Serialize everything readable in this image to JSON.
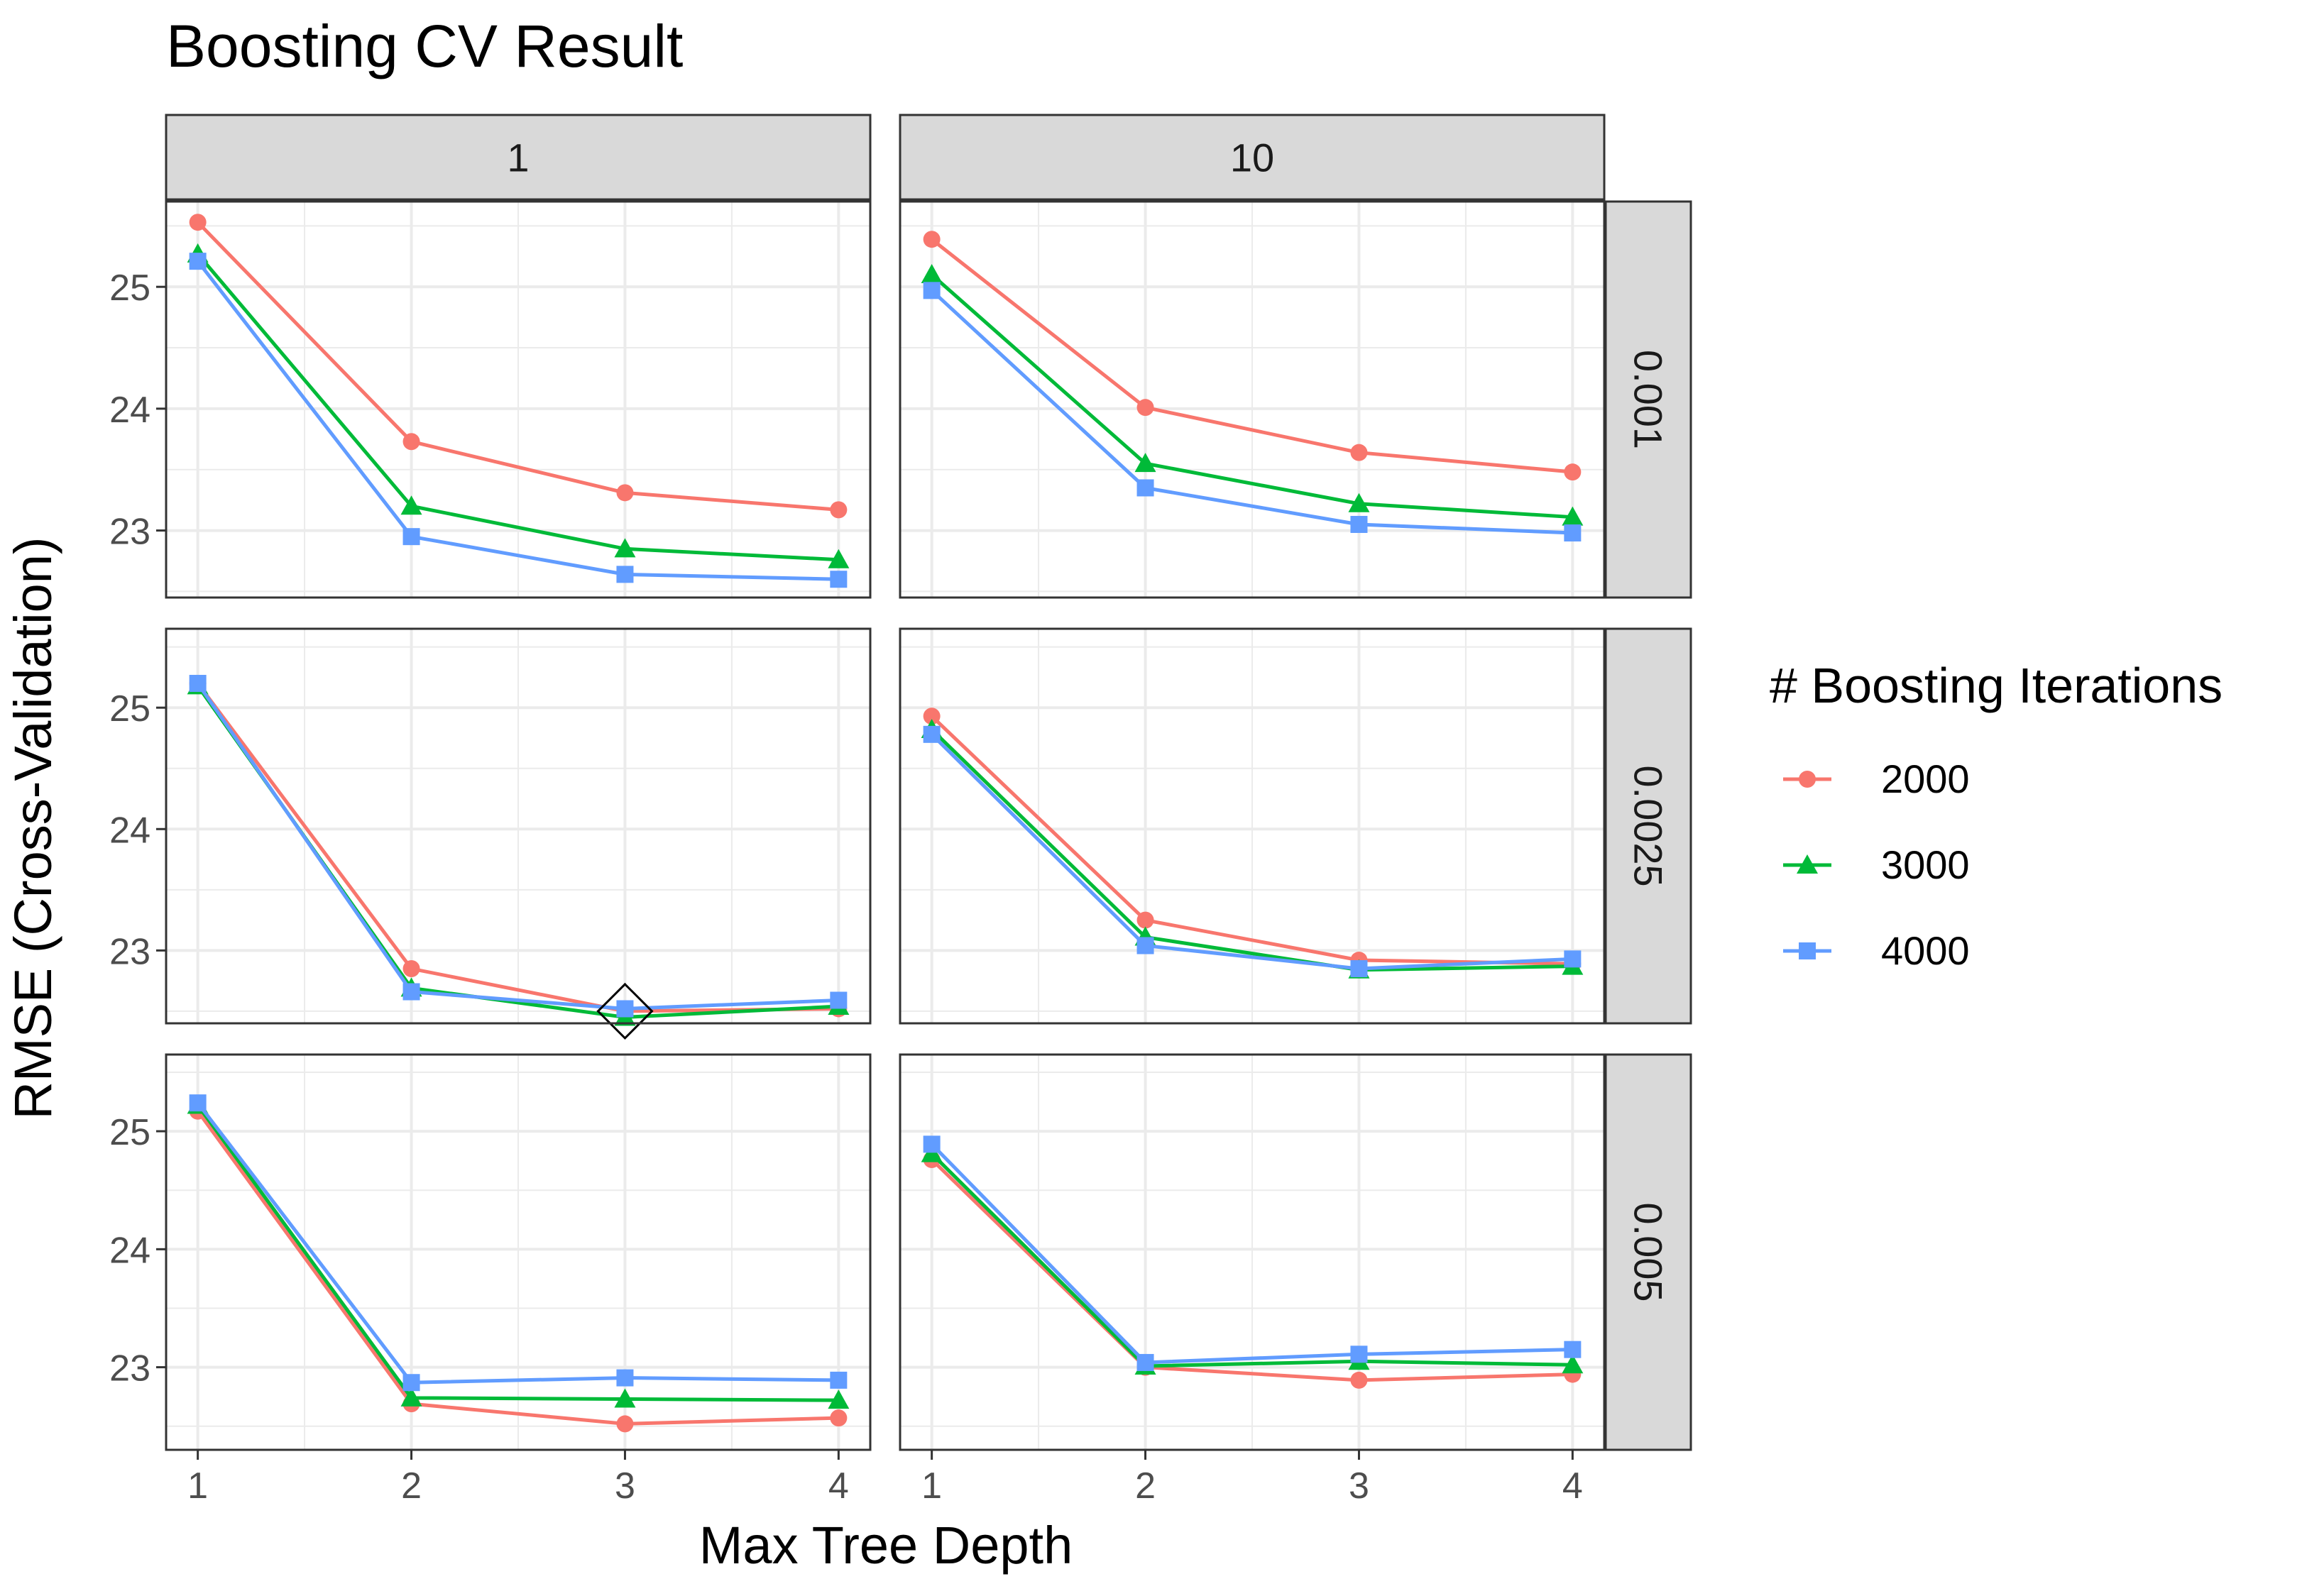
{
  "chart_data": {
    "type": "line",
    "title": "Boosting CV Result",
    "xlabel": "Max Tree Depth",
    "ylabel": "RMSE (Cross-Validation)",
    "x": [
      1,
      2,
      3,
      4
    ],
    "x_ticks": [
      "1",
      "2",
      "3",
      "4"
    ],
    "y_ticks": [
      "23",
      "24",
      "25"
    ],
    "legend_title": "# Boosting Iterations",
    "legend_position": "right",
    "grid": true,
    "facet_columns": [
      "1",
      "10"
    ],
    "facet_rows": [
      "0.001",
      "0.0025",
      "0.005"
    ],
    "series_meta": [
      {
        "name": "2000",
        "color": "#F8766D",
        "shape": "circle"
      },
      {
        "name": "3000",
        "color": "#00BA38",
        "shape": "triangle"
      },
      {
        "name": "4000",
        "color": "#619CFF",
        "shape": "square"
      }
    ],
    "row_ylims": [
      [
        22.45,
        25.7
      ],
      [
        22.4,
        25.65
      ],
      [
        22.3,
        25.65
      ]
    ],
    "panels": [
      {
        "row": "0.001",
        "col": "1",
        "series": [
          {
            "name": "2000",
            "values": [
              25.53,
              23.73,
              23.31,
              23.17
            ]
          },
          {
            "name": "3000",
            "values": [
              25.27,
              23.2,
              22.85,
              22.76
            ]
          },
          {
            "name": "4000",
            "values": [
              25.21,
              22.95,
              22.64,
              22.6
            ]
          }
        ]
      },
      {
        "row": "0.001",
        "col": "10",
        "series": [
          {
            "name": "2000",
            "values": [
              25.39,
              24.01,
              23.64,
              23.48
            ]
          },
          {
            "name": "3000",
            "values": [
              25.1,
              23.55,
              23.22,
              23.11
            ]
          },
          {
            "name": "4000",
            "values": [
              24.97,
              23.35,
              23.05,
              22.98
            ]
          }
        ]
      },
      {
        "row": "0.0025",
        "col": "1",
        "series": [
          {
            "name": "2000",
            "values": [
              25.2,
              22.85,
              22.5,
              22.52
            ]
          },
          {
            "name": "3000",
            "values": [
              25.18,
              22.69,
              22.45,
              22.54
            ]
          },
          {
            "name": "4000",
            "values": [
              25.2,
              22.66,
              22.52,
              22.59
            ]
          }
        ]
      },
      {
        "row": "0.0025",
        "col": "10",
        "series": [
          {
            "name": "2000",
            "values": [
              24.93,
              23.25,
              22.92,
              22.89
            ]
          },
          {
            "name": "3000",
            "values": [
              24.82,
              23.11,
              22.84,
              22.87
            ]
          },
          {
            "name": "4000",
            "values": [
              24.78,
              23.04,
              22.85,
              22.93
            ]
          }
        ]
      },
      {
        "row": "0.005",
        "col": "1",
        "series": [
          {
            "name": "2000",
            "values": [
              25.17,
              22.69,
              22.52,
              22.57
            ]
          },
          {
            "name": "3000",
            "values": [
              25.22,
              22.74,
              22.73,
              22.72
            ]
          },
          {
            "name": "4000",
            "values": [
              25.24,
              22.87,
              22.91,
              22.89
            ]
          }
        ]
      },
      {
        "row": "0.005",
        "col": "10",
        "series": [
          {
            "name": "2000",
            "values": [
              24.76,
              23.0,
              22.89,
              22.94
            ]
          },
          {
            "name": "3000",
            "values": [
              24.81,
              23.01,
              23.05,
              23.02
            ]
          },
          {
            "name": "4000",
            "values": [
              24.89,
              23.04,
              23.11,
              23.15
            ]
          }
        ]
      }
    ],
    "annotation": {
      "shape": "diamond",
      "panel_row": "0.0025",
      "panel_col": "1",
      "x": 3,
      "y": 22.5
    }
  }
}
